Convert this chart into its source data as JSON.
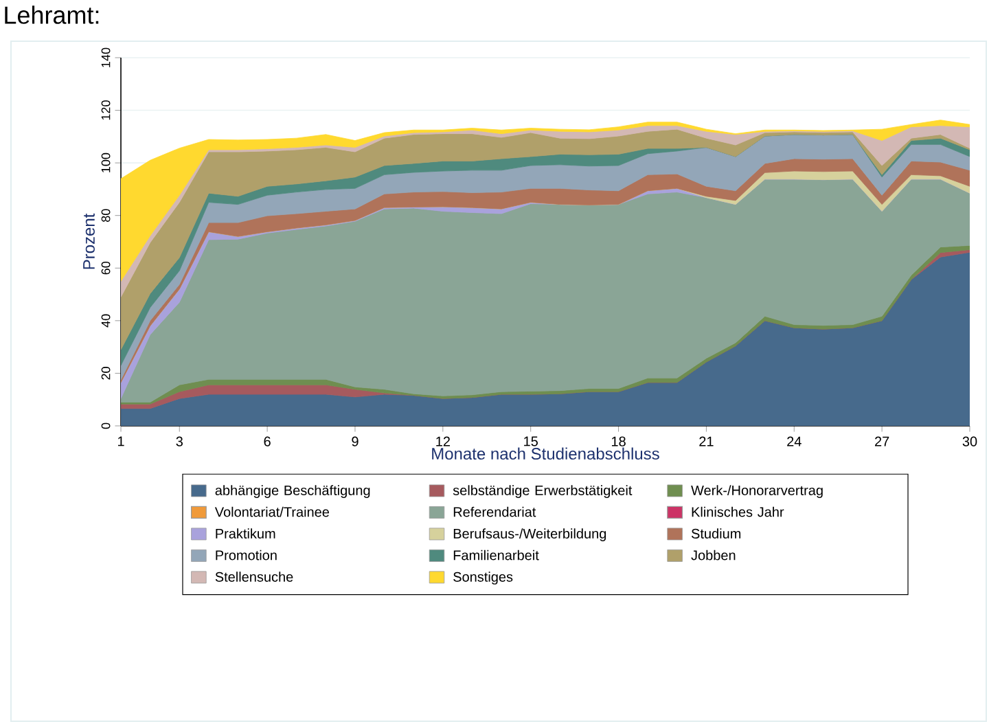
{
  "chart_data": {
    "type": "area",
    "stacked": true,
    "title": "Lehramt:",
    "xlabel": "Monate nach Studienabschluss",
    "ylabel": "Prozent",
    "x": [
      1,
      2,
      3,
      4,
      5,
      6,
      7,
      8,
      9,
      10,
      11,
      12,
      13,
      14,
      15,
      16,
      17,
      18,
      19,
      20,
      21,
      22,
      23,
      24,
      25,
      26,
      27,
      28,
      29,
      30
    ],
    "xlim": [
      1,
      30
    ],
    "xticks": [
      1,
      3,
      6,
      9,
      12,
      15,
      18,
      21,
      24,
      27,
      30
    ],
    "ylim": [
      0,
      140
    ],
    "yticks": [
      0,
      20,
      40,
      60,
      80,
      100,
      120,
      140
    ],
    "grid": "y",
    "legend": "bottom",
    "series": [
      {
        "name": "abhängige Beschäftigung",
        "color": "#476a8c",
        "values": [
          6.6,
          6.6,
          10.4,
          12,
          12,
          12,
          12,
          12,
          11,
          12,
          11.6,
          10.4,
          10.8,
          12,
          12,
          12.2,
          13,
          13,
          16.5,
          16.5,
          24.3,
          30.4,
          40,
          37.3,
          36.8,
          37.3,
          40,
          55.6,
          64.2,
          66
        ]
      },
      {
        "name": "selbständige Erwerbstätigkeit",
        "color": "#a65a5e",
        "values": [
          1.7,
          1.7,
          2.6,
          3.6,
          3.6,
          3.6,
          3.6,
          3.6,
          2.9,
          0.5,
          0,
          0,
          0,
          0,
          0,
          0,
          0,
          0,
          0,
          0,
          0,
          0,
          0,
          0,
          0,
          0,
          0,
          0,
          1.7,
          1
        ]
      },
      {
        "name": "Werk-/Honorarvertrag",
        "color": "#6f8e50",
        "values": [
          0.7,
          0.7,
          2.6,
          2.1,
          2.1,
          2.1,
          2.1,
          2.1,
          0.9,
          1.4,
          0.6,
          1,
          1,
          1,
          1.2,
          1.2,
          1.2,
          1.2,
          1.7,
          1.7,
          1.4,
          1.2,
          1.7,
          1.2,
          1.4,
          1.2,
          1.7,
          1.7,
          2.1,
          1.6
        ]
      },
      {
        "name": "Volontariat/Trainee",
        "color": "#f09a3a",
        "values": [
          null,
          null,
          null,
          null,
          null,
          null,
          null,
          null,
          null,
          null,
          null,
          null,
          null,
          null,
          null,
          null,
          null,
          null,
          null,
          null,
          null,
          null,
          null,
          null,
          null,
          null,
          null,
          null,
          null,
          null
        ]
      },
      {
        "name": "Referendariat",
        "color": "#8aa596",
        "values": [
          1.4,
          25.7,
          31.4,
          53.1,
          53.3,
          55.6,
          57,
          58.3,
          63,
          68.6,
          70.6,
          70.2,
          69.3,
          67.7,
          71.3,
          70.8,
          69.8,
          70,
          70,
          70.7,
          61.1,
          52.6,
          52.1,
          55.3,
          55.4,
          55.3,
          39.9,
          36.5,
          25.8,
          19.9
        ]
      },
      {
        "name": "Klinisches Jahr",
        "color": "#cc3366",
        "values": [
          null,
          null,
          null,
          null,
          null,
          null,
          null,
          null,
          null,
          null,
          null,
          null,
          null,
          null,
          null,
          null,
          null,
          null,
          null,
          null,
          null,
          null,
          null,
          null,
          null,
          null,
          null,
          null,
          null,
          null
        ]
      },
      {
        "name": "Praktikum",
        "color": "#a9a2dc",
        "values": [
          6.1,
          3.3,
          5,
          3,
          1,
          0.5,
          0.5,
          0.4,
          0.3,
          0.5,
          0.4,
          1.7,
          1.9,
          1.8,
          0.5,
          0,
          0,
          0,
          1.2,
          1.4,
          0,
          0,
          0,
          0,
          0,
          0,
          0,
          0,
          0,
          0
        ]
      },
      {
        "name": "Berufsaus-/Weiterbildung",
        "color": "#d6d19c",
        "values": [
          0,
          0,
          0,
          0,
          0,
          0,
          0,
          0,
          0,
          0,
          0,
          0,
          0,
          0,
          0,
          0,
          0,
          0,
          0,
          0,
          0.5,
          1.5,
          2.5,
          3.1,
          3.1,
          3.1,
          2.6,
          1.7,
          1.3,
          2.6
        ]
      },
      {
        "name": "Studium",
        "color": "#b0735a",
        "values": [
          1,
          2,
          1.8,
          3.5,
          5.3,
          6.1,
          5.5,
          5.2,
          4.4,
          5.2,
          5.7,
          5.8,
          5.7,
          6.4,
          5.3,
          6.1,
          5.7,
          5.2,
          6.1,
          5.5,
          3.8,
          3.7,
          3.5,
          4.7,
          4.7,
          4.7,
          3.5,
          5.2,
          5.2,
          6.1
        ]
      },
      {
        "name": "Promotion",
        "color": "#93a6b8",
        "values": [
          5.5,
          5,
          5.2,
          7.7,
          6.9,
          7.8,
          8.2,
          8.3,
          7.8,
          7.3,
          7.5,
          7.8,
          8.5,
          8.3,
          8.7,
          9,
          9.1,
          9.6,
          8,
          8.7,
          14.8,
          13,
          10.4,
          9.2,
          9.2,
          9.2,
          6.9,
          6.3,
          6.7,
          5.2
        ]
      },
      {
        "name": "Familienarbeit",
        "color": "#4f8a7e",
        "values": [
          6,
          5.3,
          5,
          3.5,
          3.1,
          3.4,
          3.1,
          3.3,
          4.3,
          3.5,
          3.4,
          3.8,
          3.5,
          4.4,
          3.4,
          4,
          4.3,
          4.3,
          2,
          1,
          0,
          0,
          0,
          0,
          0,
          0,
          0.9,
          1.5,
          2.4,
          2.6
        ]
      },
      {
        "name": "Jobben",
        "color": "#b0a06a",
        "values": [
          20,
          19.4,
          21,
          15.7,
          16.9,
          13.4,
          13,
          12.7,
          9.6,
          10.4,
          11,
          10.4,
          10.4,
          8.1,
          9.1,
          6.1,
          6.1,
          6.9,
          6.5,
          7.3,
          3.5,
          4.4,
          1.3,
          1,
          1,
          1,
          3.5,
          0.9,
          1.4,
          0.6
        ]
      },
      {
        "name": "Stellensuche",
        "color": "#d3b8b4",
        "values": [
          6,
          2.6,
          2.7,
          0.8,
          0.8,
          0.9,
          0.9,
          0.9,
          1.7,
          0.8,
          0.7,
          0.7,
          1.4,
          1.4,
          1,
          2.6,
          2.6,
          2.3,
          2.2,
          1.4,
          2.6,
          4,
          0.5,
          0.4,
          0.4,
          0.4,
          9.5,
          4.3,
          3.4,
          8.1
        ]
      },
      {
        "name": "Sonstiges",
        "color": "#ffd92f",
        "values": [
          39,
          28.7,
          17.9,
          3.9,
          3.7,
          3.5,
          3.5,
          4,
          2.6,
          1.3,
          1,
          0.7,
          0.7,
          1.4,
          0.7,
          0.8,
          0.8,
          1.2,
          1.3,
          1.3,
          0.8,
          0.3,
          0.5,
          0.3,
          0.3,
          0.3,
          4.3,
          0.9,
          2.1,
          0.9
        ]
      }
    ]
  }
}
